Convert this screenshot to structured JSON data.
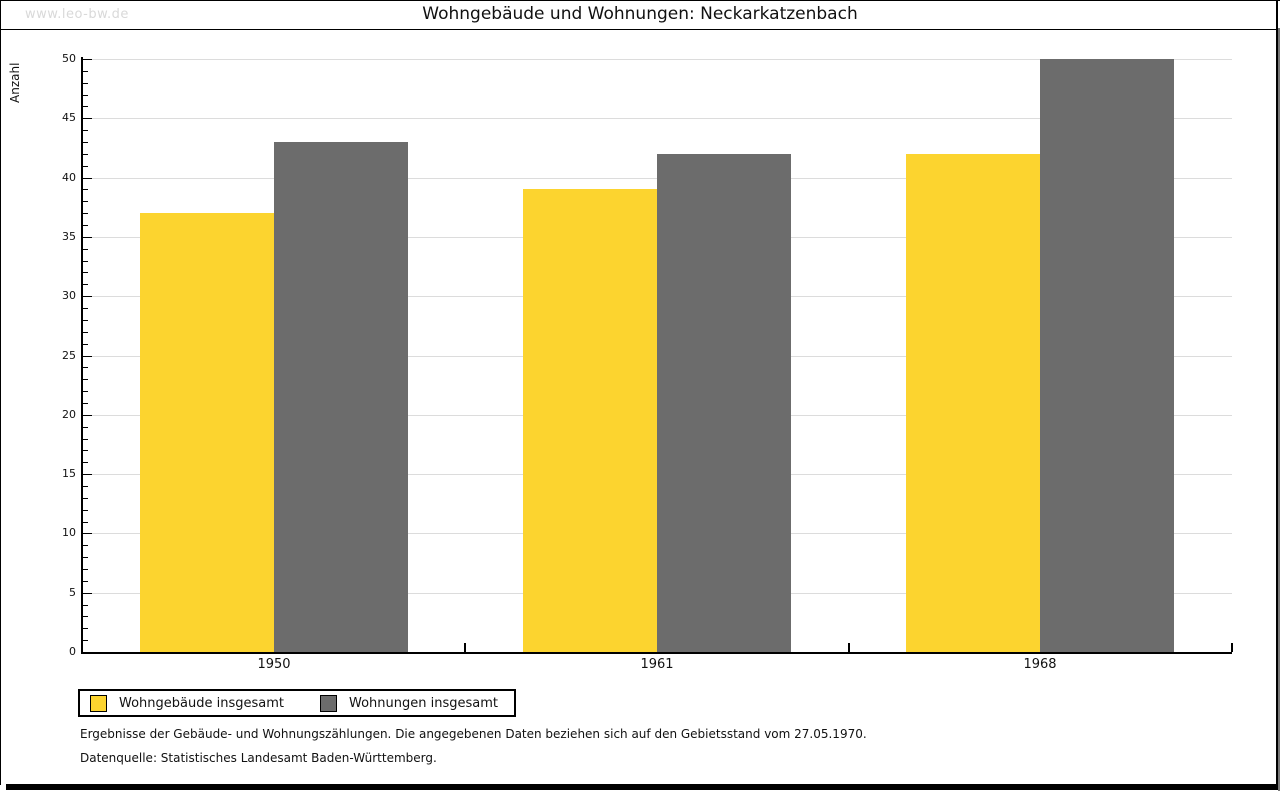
{
  "page": {
    "watermark": "www.leo-bw.de",
    "title": "Wohngebäude und Wohnungen: Neckarkatzenbach"
  },
  "chart_data": {
    "type": "bar",
    "title": "Wohngebäude und Wohnungen: Neckarkatzenbach",
    "categories": [
      "1950",
      "1961",
      "1968"
    ],
    "series": [
      {
        "name": "Wohngebäude insgesamt",
        "color": "#FCD42F",
        "values": [
          37,
          39,
          42
        ]
      },
      {
        "name": "Wohnungen insgesamt",
        "color": "#6C6C6C",
        "values": [
          43,
          42,
          50
        ]
      }
    ],
    "xlabel": "",
    "ylabel": "Anzahl",
    "ylim": [
      0,
      50
    ],
    "y_major_step": 5,
    "y_minor_step": 1,
    "grid": true,
    "legend_position": "bottom-left",
    "gridline_color": "#DCDCDC"
  },
  "footer": {
    "line1": "Ergebnisse der Gebäude- und Wohnungszählungen. Die angegebenen Daten beziehen sich auf den Gebietsstand vom 27.05.1970.",
    "line2": "Datenquelle: Statistisches Landesamt Baden-Württemberg."
  }
}
